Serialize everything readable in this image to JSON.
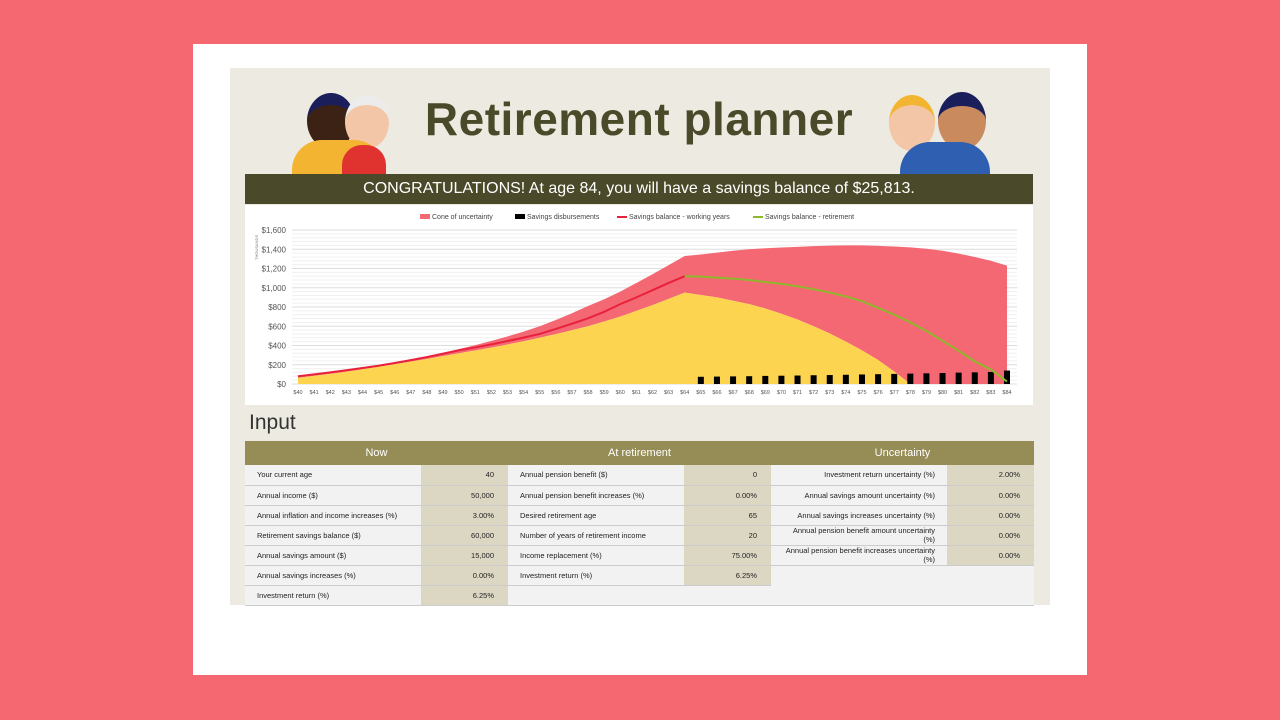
{
  "title": "Retirement planner",
  "banner": "CONGRATULATIONS! At age 84, you will have a savings balance of $25,813.",
  "input_heading": "Input",
  "colors": {
    "background": "#F56872",
    "title": "#4A4A2A",
    "header": "#968C55",
    "cone": "#F46874",
    "lower_cone": "#FDD44F",
    "working": "#E8213C",
    "retirement": "#8DB82A",
    "disbursement": "#000000"
  },
  "table": {
    "headers": [
      "Now",
      "At retirement",
      "Uncertainty"
    ],
    "now": [
      [
        "Your current age",
        "40"
      ],
      [
        "Annual income ($)",
        "50,000"
      ],
      [
        "Annual inflation and income increases (%)",
        "3.00%"
      ],
      [
        "Retirement savings balance ($)",
        "60,000"
      ],
      [
        "Annual savings amount ($)",
        "15,000"
      ],
      [
        "Annual savings increases (%)",
        "0.00%"
      ],
      [
        "Investment return (%)",
        "6.25%"
      ]
    ],
    "retirement": [
      [
        "Annual pension benefit ($)",
        "0"
      ],
      [
        "Annual pension benefit increases (%)",
        "0.00%"
      ],
      [
        "Desired retirement age",
        "65"
      ],
      [
        "Number of years of retirement income",
        "20"
      ],
      [
        "Income replacement (%)",
        "75.00%"
      ],
      [
        "Investment return (%)",
        "6.25%"
      ]
    ],
    "uncertainty": [
      [
        "Investment return uncertainty (%)",
        "2.00%"
      ],
      [
        "Annual savings amount uncertainty (%)",
        "0.00%"
      ],
      [
        "Annual savings increases uncertainty (%)",
        "0.00%"
      ],
      [
        "Annual pension benefit amount uncertainty (%)",
        "0.00%"
      ],
      [
        "Annual pension benefit increases uncertainty (%)",
        "0.00%"
      ]
    ]
  },
  "chart_data": {
    "type": "area",
    "ylabel": "THOUSANDS",
    "ylim": [
      0,
      1600
    ],
    "yticks": [
      "$0",
      "$200",
      "$400",
      "$600",
      "$800",
      "$1,000",
      "$1,200",
      "$1,400",
      "$1,600"
    ],
    "grid": true,
    "legend_position": "top",
    "legend": [
      "Cone of uncertainty",
      "Savings disbursements",
      "Savings balance - working years",
      "Savings balance - retirement"
    ],
    "x": [
      40,
      41,
      42,
      43,
      44,
      45,
      46,
      47,
      48,
      49,
      50,
      51,
      52,
      53,
      54,
      55,
      56,
      57,
      58,
      59,
      60,
      61,
      62,
      63,
      64,
      65,
      66,
      67,
      68,
      69,
      70,
      71,
      72,
      73,
      74,
      75,
      76,
      77,
      78,
      79,
      80,
      81,
      82,
      83,
      84
    ],
    "xtick_prefix": "$",
    "cone_upper": [
      82,
      102,
      124,
      147,
      171,
      196,
      225,
      256,
      290,
      326,
      364,
      404,
      448,
      494,
      544,
      600,
      665,
      735,
      810,
      880,
      960,
      1050,
      1140,
      1235,
      1330,
      1345,
      1365,
      1385,
      1400,
      1410,
      1418,
      1425,
      1432,
      1438,
      1440,
      1440,
      1435,
      1428,
      1420,
      1405,
      1385,
      1355,
      1320,
      1280,
      1230
    ],
    "cone_lower": [
      65,
      85,
      105,
      127,
      152,
      180,
      205,
      232,
      260,
      290,
      320,
      348,
      378,
      410,
      444,
      480,
      518,
      558,
      600,
      650,
      700,
      760,
      820,
      885,
      950,
      925,
      900,
      865,
      830,
      785,
      730,
      670,
      600,
      525,
      440,
      350,
      250,
      130,
      0,
      0,
      0,
      0,
      0,
      0,
      0
    ],
    "balance_working": [
      80,
      100,
      121,
      143,
      166,
      190,
      218,
      248,
      280,
      314,
      350,
      380,
      412,
      446,
      482,
      520,
      572,
      626,
      682,
      750,
      830,
      900,
      975,
      1050,
      1120
    ],
    "balance_retirement": [
      1120,
      1115,
      1105,
      1095,
      1080,
      1060,
      1040,
      1015,
      985,
      950,
      910,
      860,
      790,
      720,
      640,
      550,
      450,
      345,
      235,
      150,
      26
    ],
    "disbursements": [
      75,
      77,
      79,
      81,
      84,
      86,
      88,
      91,
      93,
      96,
      99,
      102,
      105,
      108,
      111,
      114,
      118,
      121,
      125,
      140
    ]
  }
}
